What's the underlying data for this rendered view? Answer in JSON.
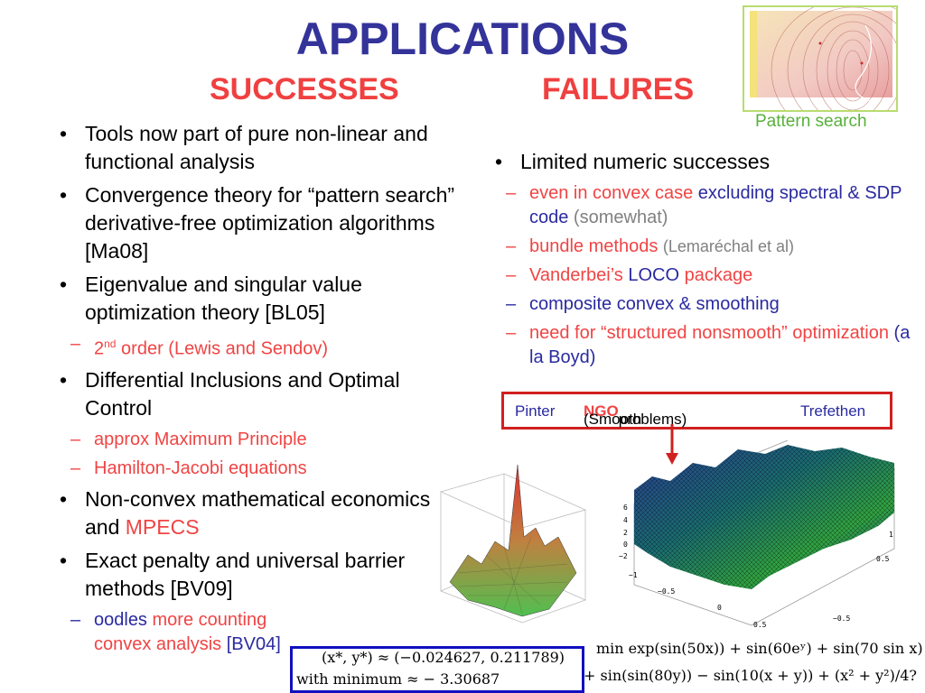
{
  "title": "APPLICATIONS",
  "subtitle_left": "SUCCESSES",
  "subtitle_right": "FAILURES",
  "thumbnail_caption": "Pattern search",
  "successes": [
    {
      "text": "Tools now part of pure non-linear and functional analysis"
    },
    {
      "text": "Convergence theory for “pattern search” derivative-free optimization algorithms [Ma08]"
    },
    {
      "text": "Eigenvalue and singular value optimization theory [BL05]"
    },
    {
      "text": "Differential Inclusions and Optimal Control"
    },
    {
      "text_a": "Non-convex mathematical economics and ",
      "text_b": "MPECS"
    },
    {
      "text": "Exact penalty and universal barrier methods [BV09]"
    }
  ],
  "sub_eigen": {
    "prefix": "2",
    "sup": "nd",
    "rest": " order (Lewis and Sendov)"
  },
  "sub_diff": [
    "approx Maximum Principle",
    "Hamilton-Jacobi equations"
  ],
  "sub_barrier": {
    "a": "oodles",
    "b": " more counting convex analysis",
    "c": " [BV04]"
  },
  "failures": {
    "main": "Limited numeric successes",
    "items": {
      "convex": {
        "a": "even in convex case ",
        "b": "excluding spectral & SDP code",
        "c": " (somewhat)"
      },
      "bundle": {
        "a": "bundle methods ",
        "b": "(Lemaréchal et al)"
      },
      "loco": {
        "a": "Vanderbei’s ",
        "b": "LOCO",
        "c": " package"
      },
      "composite": "composite convex & smoothing",
      "structured": {
        "a": "need for “structured nonsmooth” optimization",
        "b": " (a la Boyd)"
      }
    }
  },
  "ngo_box": {
    "left": "Pinter",
    "mid_a": "(Smooth ",
    "mid_b": "NGO",
    "mid_c": " problems)",
    "right": "Trefethen"
  },
  "equation_box": {
    "line1": "(x*, y*) ≈ (−0.024627, 0.211789)",
    "line2": "with minimum ≈  − 3.30687"
  },
  "objective": {
    "line1": "min exp(sin(50x)) + sin(60eʸ) + sin(70 sin x)",
    "line2": "+ sin(sin(80y)) − sin(10(x + y)) + (x² + y²)/4?"
  },
  "surface_ticks": {
    "z": [
      "6",
      "4",
      "2",
      "0",
      "−2",
      "−1"
    ],
    "x": [
      "−0.5",
      "0",
      "0.5"
    ],
    "y": [
      "1",
      "0.5",
      "−0.5"
    ]
  },
  "colors": {
    "title": "#33339a",
    "accent_red": "#f04040",
    "blue_text": "#2a2aa0",
    "caption_green": "#58b03a"
  }
}
